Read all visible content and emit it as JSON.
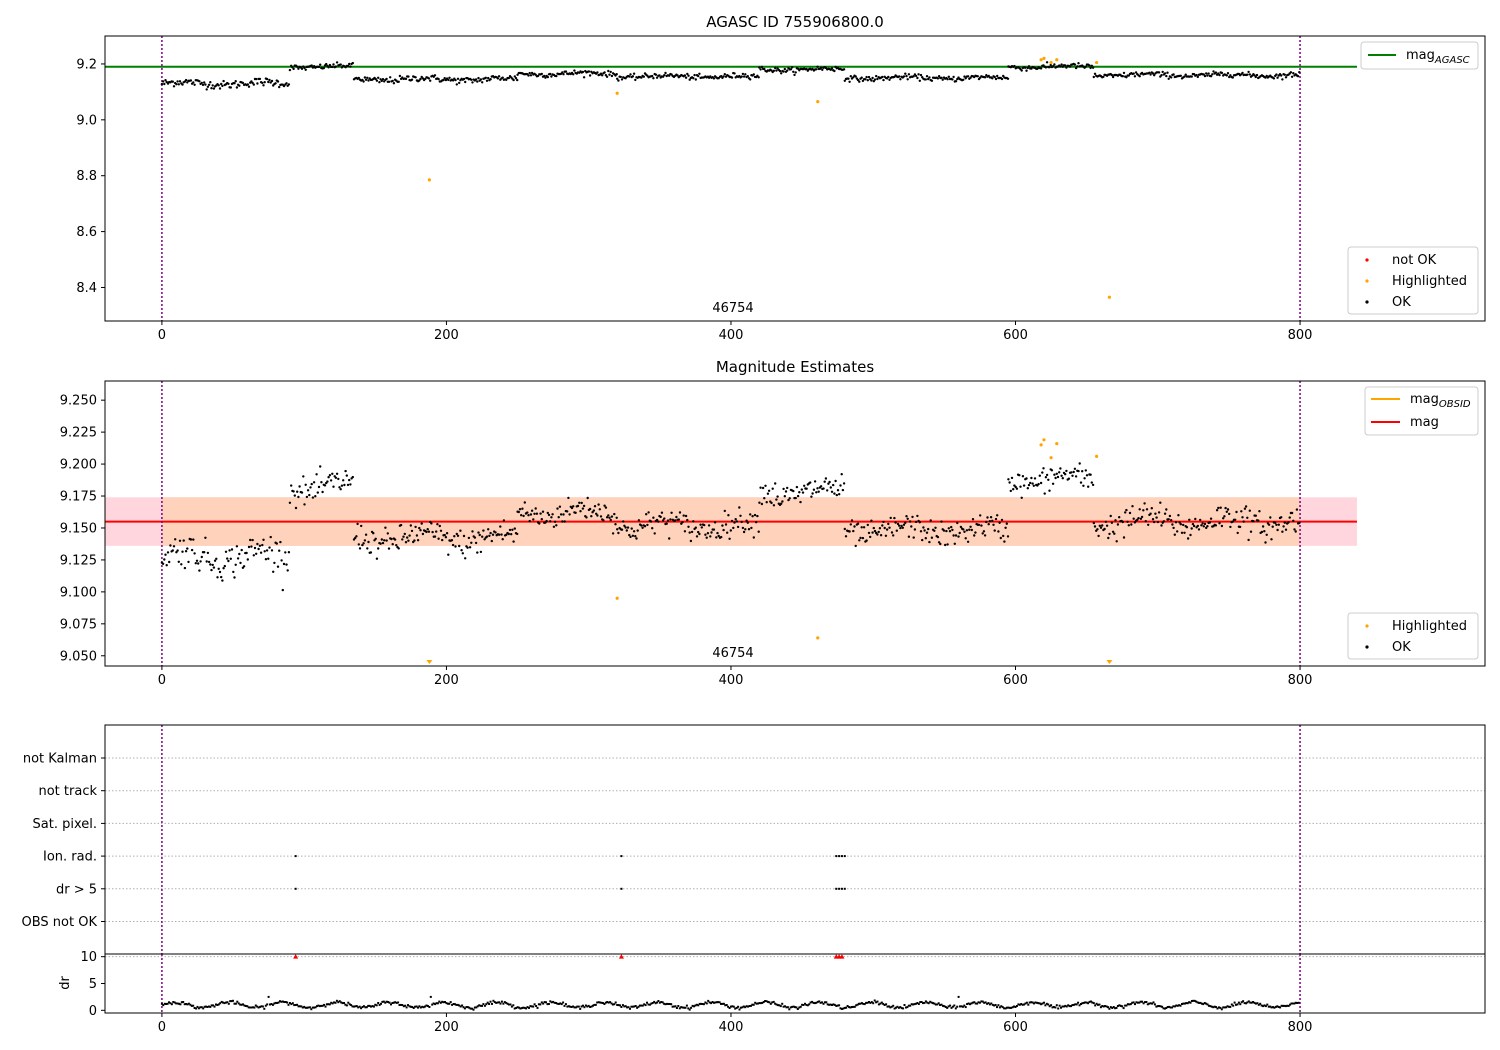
{
  "chart_data": [
    {
      "type": "scatter",
      "title": "AGASC ID 755906800.0",
      "annotation": "46754",
      "xlim": [
        -40,
        930
      ],
      "ylim": [
        8.28,
        9.3
      ],
      "xticks": [
        0,
        200,
        400,
        600,
        800
      ],
      "yticks": [
        8.4,
        8.6,
        8.8,
        9.0,
        9.2
      ],
      "ytick_labels": [
        "8.4",
        "8.6",
        "8.8",
        "9.0",
        "9.2"
      ],
      "vlines": [
        0,
        800
      ],
      "hline": {
        "y": 9.19,
        "color": "#008000"
      },
      "legend_lines": [
        "mag",
        "AGASC"
      ],
      "legend_points": [
        "not OK",
        "Highlighted",
        "OK"
      ],
      "ok_segments": [
        [
          0,
          90,
          9.13,
          0.012
        ],
        [
          90,
          135,
          9.19,
          0.008
        ],
        [
          135,
          250,
          9.145,
          0.01
        ],
        [
          250,
          320,
          9.165,
          0.008
        ],
        [
          320,
          420,
          9.155,
          0.008
        ],
        [
          420,
          480,
          9.18,
          0.008
        ],
        [
          480,
          595,
          9.15,
          0.008
        ],
        [
          595,
          655,
          9.19,
          0.008
        ],
        [
          655,
          800,
          9.16,
          0.008
        ]
      ],
      "highlighted": [
        [
          188,
          8.785
        ],
        [
          320,
          9.095
        ],
        [
          461,
          9.065
        ],
        [
          618,
          9.215
        ],
        [
          620,
          9.22
        ],
        [
          625,
          9.205
        ],
        [
          629,
          9.215
        ],
        [
          657,
          9.205
        ],
        [
          666,
          8.365
        ]
      ],
      "not_ok": []
    },
    {
      "type": "scatter",
      "title": "Magnitude Estimates",
      "annotation": "46754",
      "xlim": [
        -40,
        930
      ],
      "ylim": [
        9.042,
        9.265
      ],
      "xticks": [
        0,
        200,
        400,
        600,
        800
      ],
      "yticks": [
        9.05,
        9.075,
        9.1,
        9.125,
        9.15,
        9.175,
        9.2,
        9.225,
        9.25
      ],
      "ytick_labels": [
        "9.050",
        "9.075",
        "9.100",
        "9.125",
        "9.150",
        "9.175",
        "9.200",
        "9.225",
        "9.250"
      ],
      "vlines": [
        0,
        800
      ],
      "mag": 9.155,
      "band": [
        9.136,
        9.174
      ],
      "legend_lines": [
        "mag",
        "OBSID",
        "mag"
      ],
      "legend_points": [
        "Highlighted",
        "OK"
      ],
      "ok_segments": [
        [
          0,
          90,
          9.128,
          0.011
        ],
        [
          90,
          135,
          9.182,
          0.009
        ],
        [
          135,
          250,
          9.142,
          0.009
        ],
        [
          250,
          320,
          9.162,
          0.008
        ],
        [
          320,
          420,
          9.152,
          0.008
        ],
        [
          420,
          480,
          9.178,
          0.009
        ],
        [
          480,
          595,
          9.148,
          0.008
        ],
        [
          595,
          655,
          9.188,
          0.008
        ],
        [
          655,
          800,
          9.155,
          0.009
        ]
      ],
      "highlighted": [
        [
          320,
          9.095
        ],
        [
          461,
          9.064
        ],
        [
          618,
          9.215
        ],
        [
          620,
          9.219
        ],
        [
          625,
          9.205
        ],
        [
          629,
          9.216
        ],
        [
          657,
          9.206
        ]
      ],
      "highlighted_offscale": [
        188,
        666
      ]
    },
    {
      "type": "scatter",
      "xlim": [
        -40,
        930
      ],
      "xticks": [
        0,
        200,
        400,
        600,
        800
      ],
      "categories": [
        "not Kalman",
        "not track",
        "Sat. pixel.",
        "Ion. rad.",
        "dr > 5",
        "OBS not OK"
      ],
      "flags": {
        "Ion. rad.": [
          94,
          323,
          474,
          476,
          478,
          480
        ],
        "dr > 5": [
          94,
          323,
          474,
          476,
          478,
          480
        ]
      },
      "vlines": [
        0,
        800
      ],
      "dr": {
        "ylabel": "dr",
        "ylim": [
          -0.5,
          10.5
        ],
        "yticks": [
          0,
          5,
          10
        ],
        "threshold": 10,
        "threshold_markers": [
          94,
          323,
          474,
          476,
          478
        ],
        "baseline": 1.0
      }
    }
  ],
  "colors": {
    "ok": "#000000",
    "highlighted": "#ffa500",
    "not_ok": "#ff0000",
    "agasc_line": "#008000",
    "mag_line": "#ff0000",
    "obsid_line": "#ffa500",
    "band_outer": "#ffd6de",
    "band_inner": "#ffd2bc",
    "vline": "#800080",
    "grid": "#b0b0b0"
  }
}
